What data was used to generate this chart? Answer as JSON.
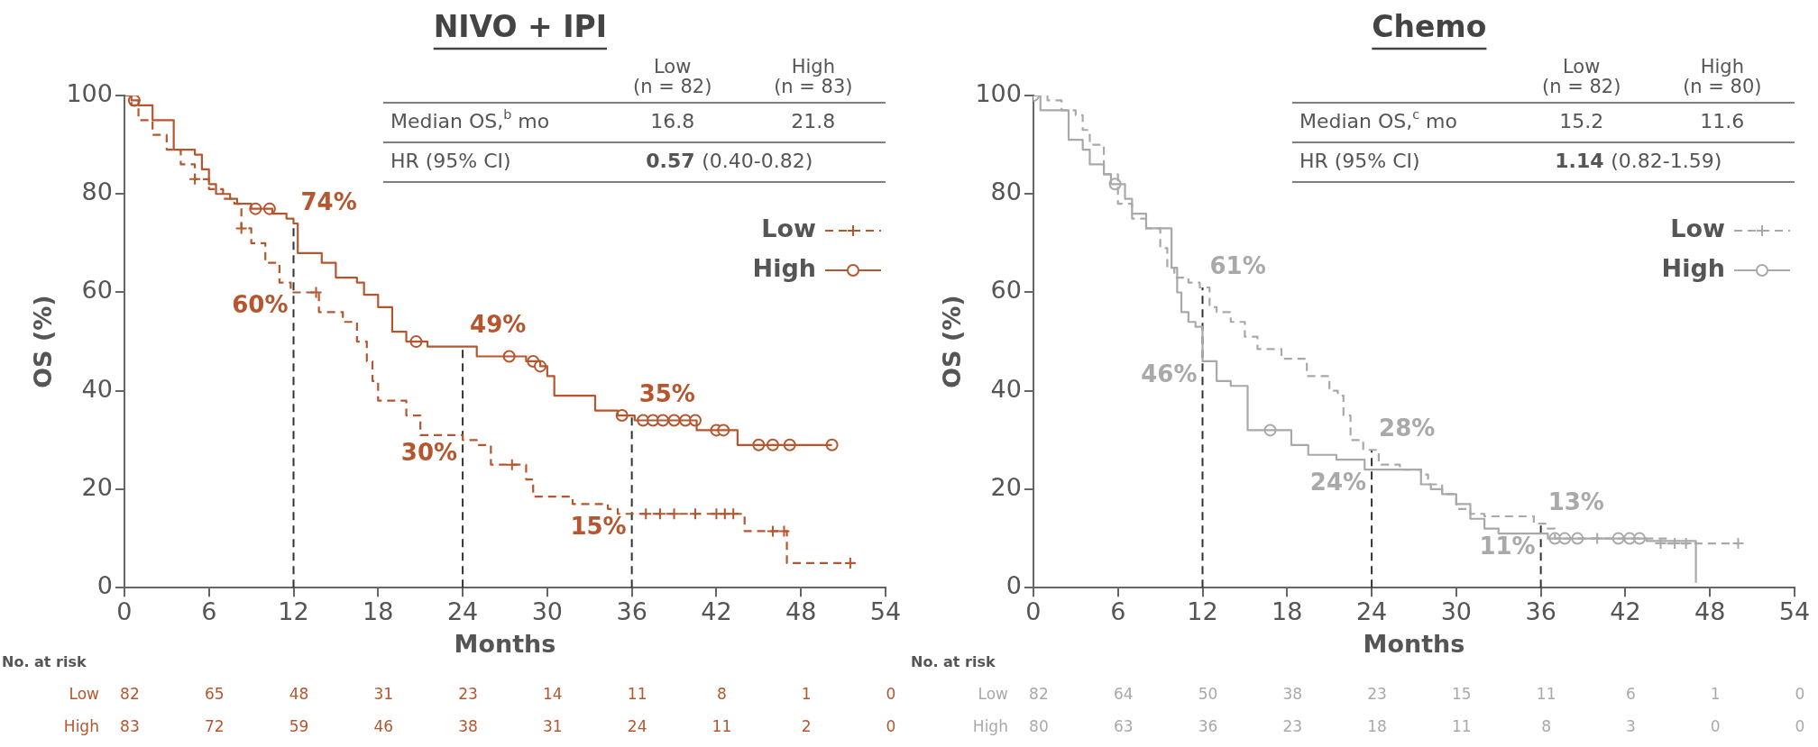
{
  "chart_data": [
    {
      "type": "step",
      "title": "NIVO + IPI",
      "xlabel": "Months",
      "ylabel": "OS (%)",
      "xlim": [
        0,
        54
      ],
      "xticks": [
        0,
        6,
        12,
        18,
        24,
        30,
        36,
        42,
        48,
        54
      ],
      "ylim": [
        0,
        100
      ],
      "yticks": [
        0,
        20,
        40,
        60,
        80,
        100
      ],
      "grid": false,
      "legend": "top right",
      "series": [
        {
          "name": "Low",
          "color": "#b5562f",
          "line_style": "dashed",
          "x": [
            0,
            0.5,
            1,
            2,
            3,
            4,
            5,
            6,
            7,
            7.8,
            8.3,
            9,
            10,
            11,
            11.8,
            13.8,
            15.5,
            16.5,
            17.2,
            17.6,
            18,
            20,
            21,
            24,
            25,
            26,
            28.5,
            29,
            31.8,
            34.3,
            35,
            44,
            47,
            52
          ],
          "values": [
            100,
            98,
            95,
            92,
            89,
            86,
            83,
            81,
            79,
            78,
            73,
            70,
            66,
            62,
            60,
            56,
            54,
            50,
            46,
            42,
            38,
            35,
            31,
            30,
            29,
            25,
            22,
            18.5,
            17,
            16,
            15,
            11.5,
            5,
            5
          ]
        },
        {
          "name": "High",
          "color": "#b5562f",
          "line_style": "solid",
          "x": [
            0,
            0.5,
            1,
            2,
            3.5,
            5,
            5.5,
            6,
            6.5,
            7.5,
            8,
            9,
            10.5,
            11.5,
            12,
            12.3,
            14,
            15,
            16.5,
            17,
            18,
            19,
            20,
            21.5,
            25,
            28.5,
            29.5,
            30,
            30.5,
            33.4,
            35,
            36.2,
            40.6,
            43.5,
            50.2
          ],
          "values": [
            100,
            99,
            98,
            95,
            89,
            88,
            85,
            82,
            80,
            79,
            78,
            77,
            76,
            75,
            74,
            68,
            66,
            63,
            62,
            59.5,
            57,
            52,
            50,
            49,
            47,
            46,
            45,
            43,
            39,
            36,
            35,
            34,
            32,
            29,
            29
          ]
        },
        {
          "type": "scatter",
          "color": "#b5562f",
          "marker": "cross",
          "x": [
            5,
            8.3,
            13.6,
            27.5,
            37,
            38,
            39,
            40.5,
            42,
            42.6,
            43.2,
            46,
            46.8,
            51.5
          ],
          "values": [
            83,
            73,
            60,
            25,
            15,
            15,
            15,
            15,
            15,
            15,
            15,
            11.5,
            11.5,
            5
          ]
        },
        {
          "type": "scatter",
          "color": "#b5562f",
          "marker": "circle",
          "x": [
            0.7,
            9.3,
            10.3,
            20.7,
            27.3,
            29,
            29.5,
            35.3,
            36.8,
            37.5,
            38.2,
            39,
            39.8,
            40.5,
            42,
            42.5,
            45,
            46,
            47.2,
            50.2
          ],
          "values": [
            99,
            77,
            77,
            50,
            47,
            46,
            45,
            35,
            34,
            34,
            34,
            34,
            34,
            34,
            32,
            32,
            29,
            29,
            29,
            29
          ]
        }
      ],
      "ref_lines": [
        {
          "axis": "x",
          "value": 12,
          "color": "#333333",
          "line_style": "dashed"
        },
        {
          "axis": "x",
          "value": 24,
          "color": "#333333",
          "line_style": "dashed"
        },
        {
          "axis": "x",
          "value": 36,
          "color": "#333333",
          "line_style": "dashed"
        }
      ],
      "annotations": [
        "Low",
        "(n = 82)",
        "High",
        "(n = 83)",
        "Median OS,$^{b}$ mo",
        "16.8",
        "21.8",
        "HR (95% CI)",
        "0.57",
        "(0.40-0.82)",
        "No. at risk",
        "Low",
        "82",
        "65",
        "48",
        "31",
        "23",
        "14",
        "11",
        "8",
        "1",
        "0",
        "High",
        "83",
        "72",
        "59",
        "46",
        "38",
        "31",
        "24",
        "11",
        "2",
        "0",
        {
          "text": "74%",
          "x": 12,
          "y": 74
        },
        {
          "text": "60%",
          "x": 12,
          "y": 60
        },
        {
          "text": "49%",
          "x": 24,
          "y": 49
        },
        {
          "text": "30%",
          "x": 24,
          "y": 30
        },
        {
          "text": "35%",
          "x": 36,
          "y": 35
        },
        {
          "text": "15%",
          "x": 36,
          "y": 15
        }
      ]
    },
    {
      "type": "step",
      "title": "Chemo",
      "xlabel": "Months",
      "ylabel": "OS (%)",
      "xlim": [
        0,
        54
      ],
      "xticks": [
        0,
        6,
        12,
        18,
        24,
        30,
        36,
        42,
        48,
        54
      ],
      "ylim": [
        0,
        100
      ],
      "yticks": [
        0,
        20,
        40,
        60,
        80,
        100
      ],
      "grid": false,
      "legend": "top right",
      "series": [
        {
          "name": "Low",
          "color": "#a9a9a9",
          "line_style": "dashed",
          "x": [
            0,
            1,
            2,
            3,
            3.5,
            4,
            5,
            6,
            7,
            8,
            9,
            9.5,
            10,
            11,
            11.8,
            12.5,
            13,
            14,
            15,
            15.9,
            17.6,
            19.4,
            21,
            21.6,
            22,
            22.5,
            23.4,
            24.5,
            26,
            27.5,
            28,
            29,
            30,
            31,
            32,
            35.5,
            36.5,
            37,
            45,
            50
          ],
          "values": [
            100,
            99,
            97,
            96,
            93,
            90,
            84,
            78,
            75,
            73,
            69,
            65,
            63,
            62,
            61,
            57,
            56,
            54,
            51,
            48.5,
            46.5,
            43,
            40,
            39,
            35,
            30,
            28,
            25,
            24,
            23,
            21,
            19,
            16,
            15,
            14.5,
            13,
            12,
            10,
            9,
            9
          ]
        },
        {
          "name": "High",
          "color": "#a9a9a9",
          "line_style": "solid",
          "x": [
            0,
            0.5,
            2.5,
            3.5,
            4,
            5,
            5.5,
            6.5,
            7,
            8,
            9.8,
            10.2,
            10.5,
            11,
            11.5,
            12,
            13,
            14,
            15.2,
            18.3,
            19.5,
            21.5,
            23.5,
            27.5,
            28.2,
            29,
            30,
            31,
            32,
            33,
            36.5,
            43.5,
            47
          ],
          "values": [
            100,
            97,
            91,
            89,
            86,
            84,
            82,
            79,
            76,
            73,
            65,
            60,
            56,
            54,
            53,
            46,
            42,
            41,
            32,
            29,
            27,
            26,
            24,
            21,
            20,
            19,
            17,
            14,
            12,
            11,
            10,
            9.5,
            1
          ]
        },
        {
          "type": "scatter",
          "color": "#a9a9a9",
          "marker": "cross",
          "x": [
            40,
            44.5,
            45.5,
            46.3,
            50
          ],
          "values": [
            10,
            9,
            9,
            9,
            9
          ]
        },
        {
          "type": "scatter",
          "color": "#a9a9a9",
          "marker": "circle",
          "x": [
            0,
            5.8,
            16.8,
            37,
            37.7,
            38.6,
            41.5,
            42.3,
            43
          ],
          "values": [
            100,
            82,
            32,
            10,
            10,
            10,
            10,
            10,
            10
          ]
        }
      ],
      "ref_lines": [
        {
          "axis": "x",
          "value": 12,
          "color": "#333333",
          "line_style": "dashed"
        },
        {
          "axis": "x",
          "value": 24,
          "color": "#333333",
          "line_style": "dashed"
        },
        {
          "axis": "x",
          "value": 36,
          "color": "#333333",
          "line_style": "dashed"
        }
      ],
      "annotations": [
        "Low",
        "(n = 82)",
        "High",
        "(n = 80)",
        "Median OS,$^{c}$ mo",
        "15.2",
        "11.6",
        "HR (95% CI)",
        "1.14",
        "(0.82-1.59)",
        "No. at risk",
        "Low",
        "82",
        "64",
        "50",
        "38",
        "23",
        "15",
        "11",
        "6",
        "1",
        "0",
        "High",
        "80",
        "63",
        "36",
        "23",
        "18",
        "11",
        "8",
        "3",
        "0",
        "0",
        {
          "text": "61%",
          "x": 12,
          "y": 61
        },
        {
          "text": "46%",
          "x": 12,
          "y": 46
        },
        {
          "text": "28%",
          "x": 24,
          "y": 28
        },
        {
          "text": "24%",
          "x": 24,
          "y": 24
        },
        {
          "text": "13%",
          "x": 36,
          "y": 13
        },
        {
          "text": "11%",
          "x": 36,
          "y": 11
        }
      ]
    }
  ]
}
